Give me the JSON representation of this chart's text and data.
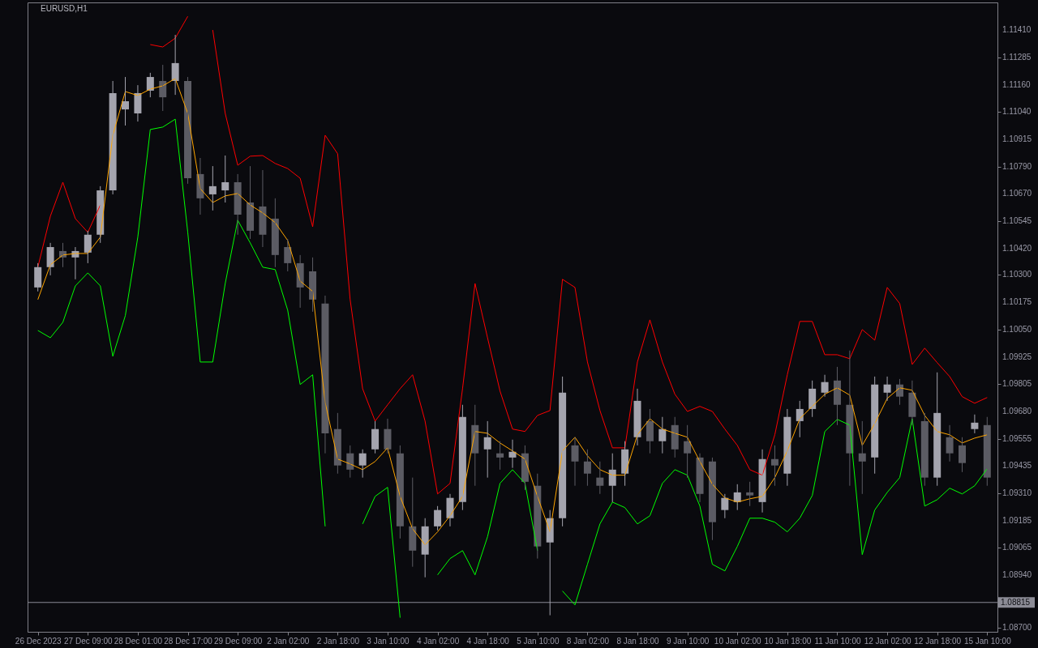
{
  "chart_data": {
    "type": "candlestick",
    "title": "EURUSD,H1",
    "categories": [
      "26 Dec 2023",
      null,
      null,
      null,
      "27 Dec 09:00",
      null,
      null,
      null,
      "28 Dec 01:00",
      null,
      null,
      null,
      "28 Dec 17:00",
      null,
      null,
      null,
      "29 Dec 09:00",
      null,
      null,
      null,
      "2 Jan 02:00",
      null,
      null,
      null,
      "2 Jan 18:00",
      null,
      null,
      null,
      "3 Jan 10:00",
      null,
      null,
      null,
      "4 Jan 02:00",
      null,
      null,
      null,
      "4 Jan 18:00",
      null,
      null,
      null,
      "5 Jan 10:00",
      null,
      null,
      null,
      "8 Jan 02:00",
      null,
      null,
      null,
      "8 Jan 18:00",
      null,
      null,
      null,
      "9 Jan 10:00",
      null,
      null,
      null,
      "10 Jan 02:00",
      null,
      null,
      null,
      "10 Jan 18:00",
      null,
      null,
      null,
      "11 Jan 10:00",
      null,
      null,
      null,
      "12 Jan 02:00",
      null,
      null,
      null,
      "12 Jan 18:00",
      null,
      null,
      null,
      "15 Jan 10:00"
    ],
    "ohlc": [
      [
        1.10243,
        1.10353,
        1.10225,
        1.10335
      ],
      [
        1.10335,
        1.10445,
        1.10298,
        1.10426
      ],
      [
        1.10408,
        1.10445,
        1.10335,
        1.10379
      ],
      [
        1.10379,
        1.10426,
        1.1028,
        1.10408
      ],
      [
        1.10401,
        1.105,
        1.10353,
        1.10482
      ],
      [
        1.10482,
        1.10702,
        1.10445,
        1.10683
      ],
      [
        1.10683,
        1.11179,
        1.10665,
        1.11124
      ],
      [
        1.1105,
        1.11197,
        1.10977,
        1.11087
      ],
      [
        1.11032,
        1.1116,
        1.10995,
        1.11124
      ],
      [
        1.11135,
        1.11216,
        1.11105,
        1.11197
      ],
      [
        1.11179,
        1.11252,
        1.11043,
        1.11105
      ],
      [
        1.11179,
        1.11388,
        1.11116,
        1.1126
      ],
      [
        1.11179,
        1.11197,
        1.10713,
        1.10738
      ],
      [
        1.10757,
        1.1083,
        1.10573,
        1.10647
      ],
      [
        1.10665,
        1.10793,
        1.10592,
        1.10702
      ],
      [
        1.10683,
        1.10841,
        1.10628,
        1.1072
      ],
      [
        1.1072,
        1.10757,
        1.10482,
        1.10573
      ],
      [
        1.10628,
        1.10793,
        1.10463,
        1.105
      ],
      [
        1.1061,
        1.10775,
        1.10426,
        1.10482
      ],
      [
        1.10555,
        1.10647,
        1.10335,
        1.1039
      ],
      [
        1.10426,
        1.10463,
        1.10316,
        1.10353
      ],
      [
        1.10353,
        1.1039,
        1.10151,
        1.10243
      ],
      [
        1.10316,
        1.10379,
        1.10133,
        1.10188
      ],
      [
        1.1017,
        1.10206,
        1.09491,
        1.09582
      ],
      [
        1.09601,
        1.09674,
        1.09399,
        1.09436
      ],
      [
        1.09491,
        1.09527,
        1.09381,
        1.09417
      ],
      [
        1.09436,
        1.09509,
        1.09381,
        1.09491
      ],
      [
        1.09509,
        1.09637,
        1.09491,
        1.09601
      ],
      [
        1.09601,
        1.09648,
        1.09491,
        1.09509
      ],
      [
        1.09491,
        1.09527,
        1.09105,
        1.0916
      ],
      [
        1.0916,
        1.09381,
        1.08977,
        1.0905
      ],
      [
        1.09032,
        1.09197,
        1.08929,
        1.0916
      ],
      [
        1.0916,
        1.09252,
        1.09142,
        1.09234
      ],
      [
        1.09197,
        1.09307,
        1.0916,
        1.09289
      ],
      [
        1.0927,
        1.09711,
        1.09234,
        1.09656
      ],
      [
        1.09619,
        1.09711,
        1.09344,
        1.09491
      ],
      [
        1.09509,
        1.09637,
        1.09381,
        1.09564
      ],
      [
        1.09491,
        1.09546,
        1.09417,
        1.09472
      ],
      [
        1.09472,
        1.09553,
        1.09425,
        1.09498
      ],
      [
        1.09491,
        1.09527,
        1.09325,
        1.09362
      ],
      [
        1.09344,
        1.09399,
        1.09014,
        1.09069
      ],
      [
        1.09087,
        1.09234,
        1.08757,
        1.09197
      ],
      [
        1.09197,
        1.09839,
        1.0916,
        1.09766
      ],
      [
        1.09527,
        1.09564,
        1.09344,
        1.09454
      ],
      [
        1.09454,
        1.09509,
        1.09344,
        1.09399
      ],
      [
        1.09381,
        1.09454,
        1.09307,
        1.09344
      ],
      [
        1.09344,
        1.09491,
        1.0927,
        1.09417
      ],
      [
        1.09399,
        1.09546,
        1.09344,
        1.09509
      ],
      [
        1.09564,
        1.09784,
        1.09527,
        1.09729
      ],
      [
        1.09637,
        1.09692,
        1.09491,
        1.09546
      ],
      [
        1.09546,
        1.09656,
        1.09491,
        1.09601
      ],
      [
        1.09619,
        1.09656,
        1.09472,
        1.09509
      ],
      [
        1.09546,
        1.09619,
        1.09381,
        1.09491
      ],
      [
        1.09472,
        1.09491,
        1.0927,
        1.09307
      ],
      [
        1.09454,
        1.09472,
        1.09098,
        1.09179
      ],
      [
        1.09234,
        1.09307,
        1.09197,
        1.09289
      ],
      [
        1.0927,
        1.09351,
        1.09234,
        1.09314
      ],
      [
        1.09314,
        1.09362,
        1.09252,
        1.093
      ],
      [
        1.0927,
        1.09509,
        1.09223,
        1.09465
      ],
      [
        1.09465,
        1.09527,
        1.09344,
        1.09436
      ],
      [
        1.09399,
        1.09692,
        1.09344,
        1.09656
      ],
      [
        1.09637,
        1.09729,
        1.09564,
        1.09692
      ],
      [
        1.09692,
        1.09821,
        1.09656,
        1.09784
      ],
      [
        1.09766,
        1.09847,
        1.09748,
        1.09814
      ],
      [
        1.09821,
        1.09883,
        1.09619,
        1.09711
      ],
      [
        1.09711,
        1.09957,
        1.09344,
        1.09491
      ],
      [
        1.09491,
        1.09637,
        1.09307,
        1.09454
      ],
      [
        1.09472,
        1.09839,
        1.09399,
        1.09803
      ],
      [
        1.09766,
        1.09839,
        1.09729,
        1.09803
      ],
      [
        1.09803,
        1.09828,
        1.09711,
        1.09748
      ],
      [
        1.09766,
        1.09821,
        1.09619,
        1.09656
      ],
      [
        1.09637,
        1.09674,
        1.09344,
        1.09381
      ],
      [
        1.09381,
        1.09858,
        1.09344,
        1.09674
      ],
      [
        1.09564,
        1.09619,
        1.09454,
        1.09491
      ],
      [
        1.09527,
        1.09564,
        1.09406,
        1.09447
      ],
      [
        1.09601,
        1.09667,
        1.09582,
        1.0963
      ],
      [
        1.09619,
        1.09656,
        1.09344,
        1.09381
      ]
    ],
    "colors": [
      "#a4a4ae",
      "#a4a4ae",
      "#5c5c64",
      "#a4a4ae",
      "#a4a4ae",
      "#a4a4ae",
      "#a4a4ae",
      "#a4a4ae",
      "#a4a4ae",
      "#a4a4ae",
      "#5c5c64",
      "#a4a4ae",
      "#5c5c64",
      "#5c5c64",
      "#a4a4ae",
      "#a4a4ae",
      "#5c5c64",
      "#5c5c64",
      "#5c5c64",
      "#5c5c64",
      "#5c5c64",
      "#5c5c64",
      "#5c5c64",
      "#5c5c64",
      "#5c5c64",
      "#5c5c64",
      "#a4a4ae",
      "#a4a4ae",
      "#5c5c64",
      "#5c5c64",
      "#5c5c64",
      "#a4a4ae",
      "#a4a4ae",
      "#a4a4ae",
      "#a4a4ae",
      "#5c5c64",
      "#a4a4ae",
      "#5c5c64",
      "#a4a4ae",
      "#5c5c64",
      "#5c5c64",
      "#a4a4ae",
      "#a4a4ae",
      "#5c5c64",
      "#5c5c64",
      "#5c5c64",
      "#a4a4ae",
      "#a4a4ae",
      "#a4a4ae",
      "#5c5c64",
      "#a4a4ae",
      "#5c5c64",
      "#5c5c64",
      "#5c5c64",
      "#5c5c64",
      "#a4a4ae",
      "#a4a4ae",
      "#5c5c64",
      "#a4a4ae",
      "#5c5c64",
      "#a4a4ae",
      "#a4a4ae",
      "#a4a4ae",
      "#a4a4ae",
      "#5c5c64",
      "#5c5c64",
      "#5c5c64",
      "#a4a4ae",
      "#a4a4ae",
      "#5c5c64",
      "#5c5c64",
      "#5c5c64",
      "#a4a4ae",
      "#5c5c64",
      "#5c5c64",
      "#a4a4ae",
      "#5c5c64"
    ],
    "series": [
      {
        "type": "line",
        "color": "#ff0000",
        "values": [
          1.10335,
          1.10566,
          1.1072,
          1.10555,
          1.10493,
          1.10617,
          null,
          null,
          null,
          1.11344,
          1.11333,
          1.11373,
          1.11472,
          null,
          1.1141,
          1.11032,
          1.10797,
          1.10838,
          1.10841,
          1.10805,
          1.10782,
          1.10738,
          1.10518,
          1.10933,
          1.10849,
          1.10188,
          1.09784,
          1.09637,
          1.09711,
          1.09784,
          1.09847,
          1.09637,
          1.09307,
          1.09355,
          1.09784,
          1.10261,
          1.10015,
          1.09773,
          1.09601,
          1.0959,
          1.09663,
          1.09685,
          1.1028,
          1.10243,
          1.09905,
          1.09685,
          1.09516,
          1.09516,
          1.09905,
          1.10096,
          1.09905,
          1.09759,
          1.09681,
          1.09704,
          1.09681,
          1.09601,
          1.09527,
          1.09417,
          1.09392,
          1.09575,
          1.09847,
          1.10089,
          1.10089,
          1.09938,
          1.09938,
          1.0992,
          1.10052,
          1.10004,
          1.10243,
          1.1017,
          1.09894,
          1.09968,
          1.09902,
          1.09839,
          1.09748,
          1.09718,
          1.09744
        ]
      },
      {
        "type": "line",
        "color": "#ffa500",
        "values": [
          1.10188,
          1.10346,
          1.1039,
          1.10397,
          1.10397,
          1.10471,
          1.10933,
          1.11131,
          1.11113,
          1.11142,
          1.11157,
          1.1119,
          1.11032,
          1.10691,
          1.10628,
          1.10658,
          1.10669,
          1.10617,
          1.10581,
          1.10537,
          1.10456,
          1.10272,
          1.10225,
          1.09722,
          1.09465,
          1.09443,
          1.09417,
          1.09454,
          1.09516,
          1.09296,
          1.09149,
          1.09076,
          1.09135,
          1.09208,
          1.09296,
          1.0959,
          1.09582,
          1.09538,
          1.09502,
          1.09465,
          1.09296,
          1.09135,
          1.09502,
          1.09564,
          1.0948,
          1.09417,
          1.09392,
          1.09392,
          1.09575,
          1.09648,
          1.09601,
          1.09582,
          1.09564,
          1.09454,
          1.09351,
          1.09289,
          1.0927,
          1.09285,
          1.09296,
          1.09381,
          1.09502,
          1.09648,
          1.09704,
          1.09759,
          1.09788,
          1.09755,
          1.09527,
          1.09626,
          1.0974,
          1.09788,
          1.09777,
          1.09663,
          1.0959,
          1.09575,
          1.09538,
          1.0956,
          1.09575
        ]
      },
      {
        "type": "line",
        "color": "#00ff00",
        "values": [
          1.10048,
          1.10015,
          1.10085,
          1.1025,
          1.10309,
          1.1025,
          1.09931,
          1.10115,
          1.10471,
          1.10959,
          1.1097,
          1.11006,
          1.10493,
          1.09905,
          1.09905,
          1.10261,
          1.10548,
          1.10445,
          1.10335,
          1.10324,
          1.1014,
          1.09803,
          1.09847,
          1.0916,
          null,
          null,
          1.09171,
          1.09296,
          1.09337,
          1.08746,
          null,
          null,
          1.0894,
          1.09014,
          1.0905,
          1.0894,
          1.09113,
          1.09355,
          1.09417,
          1.09355,
          1.0905,
          null,
          1.08867,
          1.08804,
          1.08988,
          1.09171,
          1.0927,
          1.09245,
          1.09171,
          1.09208,
          1.09355,
          1.09417,
          1.09392,
          1.09252,
          1.08988,
          1.08958,
          1.09069,
          1.09197,
          1.09197,
          1.09179,
          1.09135,
          1.09197,
          1.093,
          1.0959,
          1.09645,
          1.09619,
          1.09032,
          1.09234,
          1.09314,
          1.09381,
          1.09648,
          1.09252,
          1.09281,
          1.09333,
          1.09307,
          1.09344,
          1.09421
        ]
      }
    ],
    "ylim": [
      1.08682,
      1.11535
    ],
    "yticks": [
      {
        "value": 1.1141,
        "label": "1.11410"
      },
      1.11285,
      {
        "value": 1.1116,
        "label": "1.11160"
      },
      {
        "value": 1.1104,
        "label": "1.11040"
      },
      1.10915,
      {
        "value": 1.1079,
        "label": "1.10790"
      },
      {
        "value": 1.1067,
        "label": "1.10670"
      },
      1.10545,
      {
        "value": 1.1042,
        "label": "1.10420"
      },
      {
        "value": 1.103,
        "label": "1.10300"
      },
      1.10175,
      {
        "value": 1.1005,
        "label": "1.10050"
      },
      1.09925,
      1.09805,
      {
        "value": 1.0968,
        "label": "1.09680"
      },
      1.09555,
      1.09435,
      {
        "value": 1.0931,
        "label": "1.09310"
      },
      1.09185,
      1.09065,
      {
        "value": 1.0894,
        "label": "1.08940"
      },
      {
        "value": 1.087,
        "label": "1.08700"
      }
    ],
    "ref_lines": [
      {
        "axis": "y",
        "value": 1.08815,
        "label": "1.08815",
        "color": "#8c8c96"
      }
    ]
  }
}
